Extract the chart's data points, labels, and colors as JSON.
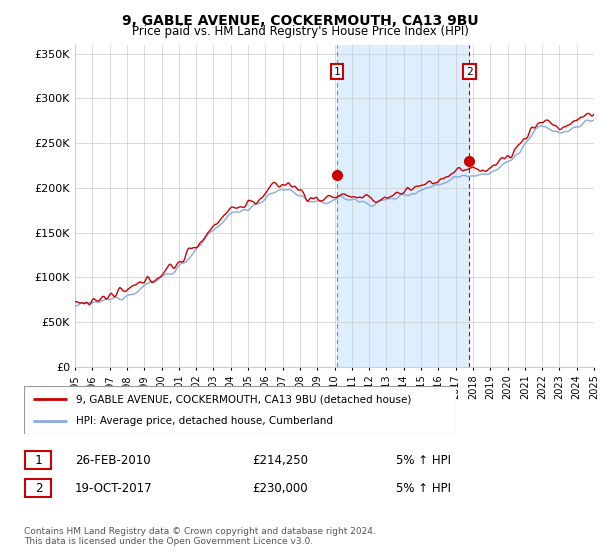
{
  "title": "9, GABLE AVENUE, COCKERMOUTH, CA13 9BU",
  "subtitle": "Price paid vs. HM Land Registry's House Price Index (HPI)",
  "ylim": [
    0,
    360000
  ],
  "yticks": [
    0,
    50000,
    100000,
    150000,
    200000,
    250000,
    300000,
    350000
  ],
  "ytick_labels": [
    "£0",
    "£50K",
    "£100K",
    "£150K",
    "£200K",
    "£250K",
    "£300K",
    "£350K"
  ],
  "x_start_year": 1995,
  "x_end_year": 2025,
  "marker1_x": 2010.15,
  "marker1_price": 214250,
  "marker1_date": "26-FEB-2010",
  "marker1_amount": "£214,250",
  "marker1_hpi": "5% ↑ HPI",
  "marker2_x": 2017.8,
  "marker2_price": 230000,
  "marker2_date": "19-OCT-2017",
  "marker2_amount": "£230,000",
  "marker2_hpi": "5% ↑ HPI",
  "property_line_color": "#cc0000",
  "hpi_line_color": "#88aadd",
  "shade_color": "#ddeeff",
  "marker1_line_color": "#888888",
  "marker2_line_color": "#cc0000",
  "marker_box_color": "#cc0000",
  "legend_line1": "9, GABLE AVENUE, COCKERMOUTH, CA13 9BU (detached house)",
  "legend_line2": "HPI: Average price, detached house, Cumberland",
  "footer": "Contains HM Land Registry data © Crown copyright and database right 2024.\nThis data is licensed under the Open Government Licence v3.0.",
  "background_color": "#ffffff",
  "grid_color": "#cccccc",
  "hpi_key_years": [
    1995,
    1996,
    1997,
    1998,
    1999,
    2000,
    2001,
    2002,
    2003,
    2004,
    2005,
    2006,
    2007,
    2008,
    2009,
    2010,
    2011,
    2012,
    2013,
    2014,
    2015,
    2016,
    2017,
    2018,
    2019,
    2020,
    2021,
    2022,
    2023,
    2024,
    2025
  ],
  "hpi_key_values": [
    68000,
    71000,
    75000,
    81000,
    90000,
    100000,
    112000,
    130000,
    152000,
    170000,
    178000,
    188000,
    198000,
    192000,
    182000,
    188000,
    187000,
    183000,
    186000,
    192000,
    198000,
    204000,
    212000,
    215000,
    218000,
    228000,
    248000,
    268000,
    262000,
    268000,
    275000
  ],
  "prop_key_years": [
    1995,
    1996,
    1997,
    1998,
    1999,
    2000,
    2001,
    2002,
    2003,
    2004,
    2005,
    2006,
    2007,
    2008,
    2009,
    2010,
    2011,
    2012,
    2013,
    2014,
    2015,
    2016,
    2017,
    2018,
    2019,
    2020,
    2021,
    2022,
    2023,
    2024,
    2025
  ],
  "prop_key_values": [
    71000,
    74000,
    78000,
    85000,
    94000,
    105000,
    117000,
    135000,
    158000,
    176000,
    182000,
    193000,
    205000,
    197000,
    186000,
    192000,
    190000,
    186000,
    190000,
    196000,
    203000,
    209000,
    218000,
    220000,
    224000,
    235000,
    255000,
    275000,
    268000,
    275000,
    283000
  ]
}
